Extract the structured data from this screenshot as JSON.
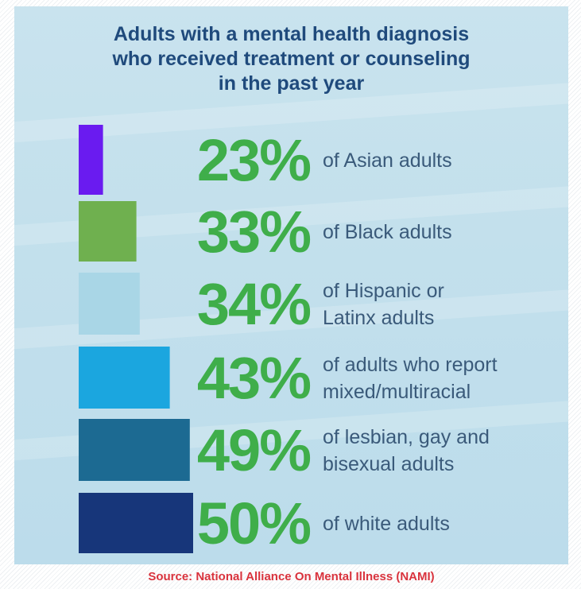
{
  "title_lines": [
    "Adults with a mental health diagnosis",
    "who received treatment or counseling",
    "in the past year"
  ],
  "source": "Source: National Alliance On Mental Illness (NAMI)",
  "colors": {
    "title": "#1f4a7c",
    "percent_text": "#3fae4a",
    "label_text": "#3a5a7a",
    "source": "#d9333d"
  },
  "chart_data": {
    "type": "bar",
    "orientation": "horizontal",
    "title": "Adults with a mental health diagnosis who received treatment or counseling in the past year",
    "categories": [
      "of Asian adults",
      "of Black adults",
      "of Hispanic or Latinx adults",
      "of adults who report mixed/multiracial",
      "of lesbian, gay and bisexual adults",
      "of white adults"
    ],
    "label_lines": [
      [
        "of Asian adults"
      ],
      [
        "of Black adults"
      ],
      [
        "of Hispanic or",
        "Latinx adults"
      ],
      [
        "of adults who report",
        "mixed/multiracial"
      ],
      [
        "of lesbian, gay and",
        "bisexual adults"
      ],
      [
        "of white adults"
      ]
    ],
    "values": [
      23,
      33,
      34,
      43,
      49,
      50
    ],
    "value_labels": [
      "23%",
      "33%",
      "34%",
      "43%",
      "49%",
      "50%"
    ],
    "bar_colors": [
      "#6a1bf0",
      "#6fb04f",
      "#a9d6e6",
      "#1ba6df",
      "#1c6a92",
      "#17367a"
    ],
    "unit": "%",
    "grid": false,
    "legend": "none"
  }
}
